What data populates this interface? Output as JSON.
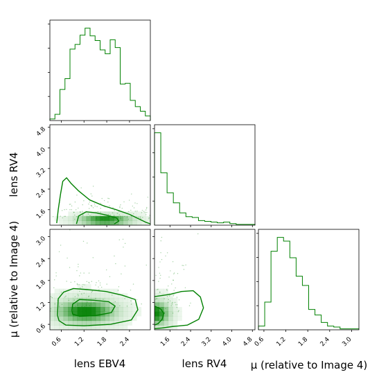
{
  "figure": {
    "type": "corner plot",
    "accent_color": "#008000"
  },
  "chart_data": {
    "type": "corner",
    "color": "#008000",
    "parameters": [
      {
        "label": "lens EBV4",
        "range": [
          0.3,
          2.95
        ],
        "ticks": [
          "0.6",
          "1.2",
          "1.8",
          "2.4"
        ],
        "tick_values": [
          0.6,
          1.2,
          1.8,
          2.4
        ]
      },
      {
        "label": "lens RV4",
        "range": [
          1.0,
          4.9
        ],
        "ticks": [
          "1.6",
          "2.4",
          "3.2",
          "4.0",
          "4.8"
        ],
        "tick_values": [
          1.6,
          2.4,
          3.2,
          4.0,
          4.8
        ]
      },
      {
        "label": "μ (relative to Image 4)",
        "range": [
          0.45,
          3.2
        ],
        "ticks": [
          "0.6",
          "1.2",
          "1.8",
          "2.4",
          "3.0"
        ],
        "tick_values": [
          0.6,
          1.2,
          1.8,
          2.4,
          3.0
        ]
      }
    ],
    "histograms": [
      {
        "param": "lens EBV4",
        "bin_edges": [
          0.3,
          2.95
        ],
        "counts": [
          2,
          8,
          40,
          54,
          92,
          98,
          110,
          119,
          109,
          103,
          91,
          86,
          104,
          94,
          47,
          48,
          26,
          18,
          12,
          6
        ]
      },
      {
        "param": "lens RV4",
        "bin_edges": [
          1.0,
          4.9
        ],
        "counts": [
          120,
          68,
          42,
          29,
          16,
          11,
          10,
          6,
          5,
          4,
          3,
          4,
          2,
          1,
          1,
          1
        ]
      },
      {
        "param": "μ (relative to Image 4)",
        "bin_edges": [
          0.45,
          3.2
        ],
        "counts": [
          4,
          30,
          85,
          100,
          96,
          78,
          58,
          48,
          22,
          16,
          8,
          4,
          3,
          1,
          1,
          1
        ]
      }
    ],
    "density_2d": [
      {
        "x": "lens EBV4",
        "y": "lens RV4",
        "peak": [
          1.75,
          1.2
        ],
        "sigma": [
          0.38,
          0.1
        ],
        "contours": [
          [
            [
              0.48,
              1.08
            ],
            [
              0.52,
              1.6
            ],
            [
              0.58,
              2.2
            ],
            [
              0.64,
              2.7
            ],
            [
              0.74,
              2.84
            ],
            [
              0.86,
              2.62
            ],
            [
              1.05,
              2.34
            ],
            [
              1.35,
              1.98
            ],
            [
              1.72,
              1.75
            ],
            [
              2.05,
              1.6
            ],
            [
              2.4,
              1.42
            ],
            [
              2.82,
              1.12
            ],
            [
              2.95,
              1.05
            ]
          ],
          [
            [
              1.0,
              1.05
            ],
            [
              1.06,
              1.36
            ],
            [
              1.26,
              1.52
            ],
            [
              1.52,
              1.48
            ],
            [
              1.82,
              1.38
            ],
            [
              2.06,
              1.28
            ],
            [
              2.12,
              1.16
            ],
            [
              2.0,
              1.05
            ]
          ]
        ]
      },
      {
        "x": "lens EBV4",
        "y": "μ (relative to Image 4)",
        "peak": [
          1.25,
          0.95
        ],
        "sigma": [
          0.42,
          0.17
        ],
        "contours": [
          [
            [
              0.5,
              0.85
            ],
            [
              0.52,
              1.3
            ],
            [
              0.66,
              1.48
            ],
            [
              0.92,
              1.58
            ],
            [
              1.3,
              1.55
            ],
            [
              1.78,
              1.5
            ],
            [
              2.2,
              1.4
            ],
            [
              2.55,
              1.28
            ],
            [
              2.62,
              1.0
            ],
            [
              2.45,
              0.72
            ],
            [
              1.9,
              0.6
            ],
            [
              1.2,
              0.56
            ],
            [
              0.72,
              0.58
            ],
            [
              0.54,
              0.7
            ],
            [
              0.5,
              0.85
            ]
          ],
          [
            [
              0.88,
              0.98
            ],
            [
              0.9,
              1.15
            ],
            [
              1.08,
              1.28
            ],
            [
              1.45,
              1.26
            ],
            [
              1.85,
              1.22
            ],
            [
              2.02,
              1.1
            ],
            [
              1.92,
              0.92
            ],
            [
              1.5,
              0.84
            ],
            [
              1.08,
              0.82
            ],
            [
              0.9,
              0.88
            ],
            [
              0.88,
              0.98
            ]
          ]
        ]
      },
      {
        "x": "lens RV4",
        "y": "μ (relative to Image 4)",
        "peak": [
          1.05,
          0.9
        ],
        "sigma": [
          0.28,
          0.17
        ],
        "contours": [
          [
            [
              1.0,
              1.36
            ],
            [
              1.6,
              1.42
            ],
            [
              2.05,
              1.5
            ],
            [
              2.5,
              1.52
            ],
            [
              2.78,
              1.35
            ],
            [
              2.9,
              1.05
            ],
            [
              2.72,
              0.74
            ],
            [
              2.28,
              0.58
            ],
            [
              1.7,
              0.54
            ],
            [
              1.3,
              0.5
            ],
            [
              1.0,
              0.48
            ]
          ],
          [
            [
              1.0,
              1.1
            ],
            [
              1.24,
              1.02
            ],
            [
              1.36,
              0.9
            ],
            [
              1.3,
              0.74
            ],
            [
              1.14,
              0.62
            ],
            [
              1.0,
              0.58
            ]
          ]
        ]
      }
    ]
  }
}
